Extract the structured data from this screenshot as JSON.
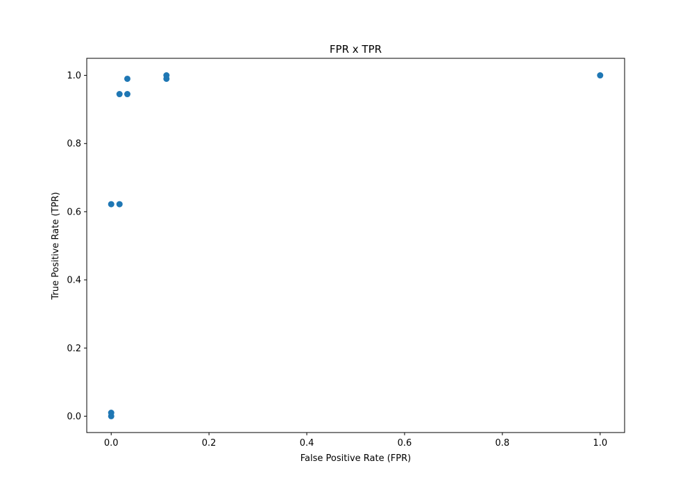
{
  "chart_data": {
    "type": "scatter",
    "title": "FPR x TPR",
    "xlabel": "False Positive Rate (FPR)",
    "ylabel": "True Positive Rate (TPR)",
    "xlim": [
      -0.05,
      1.05
    ],
    "ylim": [
      -0.048,
      1.05
    ],
    "xticks": [
      0.0,
      0.2,
      0.4,
      0.6,
      0.8,
      1.0
    ],
    "yticks": [
      0.0,
      0.2,
      0.4,
      0.6,
      0.8,
      1.0
    ],
    "xtick_labels": [
      "0.0",
      "0.2",
      "0.4",
      "0.6",
      "0.8",
      "1.0"
    ],
    "ytick_labels": [
      "0.0",
      "0.2",
      "0.4",
      "0.6",
      "0.8",
      "1.0"
    ],
    "grid": false,
    "marker_color": "#1f77b4",
    "points": [
      {
        "x": 0.0,
        "y": 0.0
      },
      {
        "x": 0.0,
        "y": 0.01
      },
      {
        "x": 0.0,
        "y": 0.622
      },
      {
        "x": 0.017,
        "y": 0.622
      },
      {
        "x": 0.017,
        "y": 0.945
      },
      {
        "x": 0.033,
        "y": 0.945
      },
      {
        "x": 0.033,
        "y": 0.99
      },
      {
        "x": 0.113,
        "y": 0.99
      },
      {
        "x": 0.113,
        "y": 1.0
      },
      {
        "x": 1.0,
        "y": 1.0
      }
    ]
  }
}
